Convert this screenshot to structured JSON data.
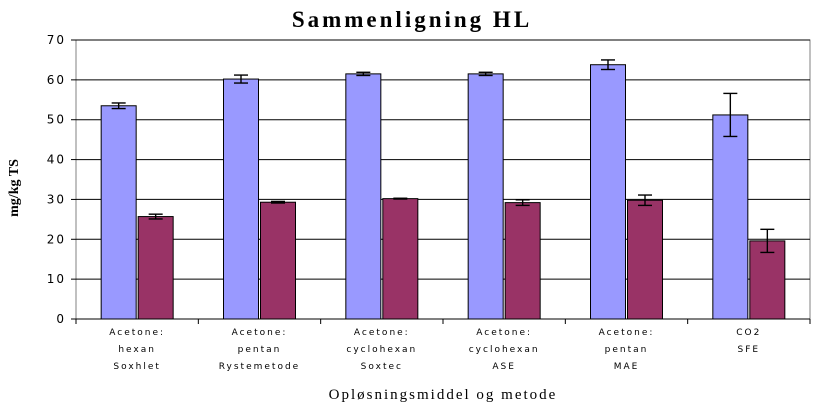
{
  "chart_data": {
    "type": "bar",
    "title": "Sammenligning HL",
    "xlabel": "Opløsningsmiddel og metode",
    "ylabel": "mg/kg TS",
    "ylim": [
      0,
      70
    ],
    "yticks": [
      0,
      10,
      20,
      30,
      40,
      50,
      60,
      70
    ],
    "grid": true,
    "legend": "none",
    "categories": [
      [
        "Acetone:",
        "hexan",
        "Soxhlet"
      ],
      [
        "Acetone:",
        "pentan",
        "Rystemetode"
      ],
      [
        "Acetone:",
        "cyclohexan",
        "Soxtec"
      ],
      [
        "Acetone:",
        "cyclohexan",
        "ASE"
      ],
      [
        "Acetone:",
        "pentan",
        "MAE"
      ],
      [
        "CO2",
        "SFE"
      ]
    ],
    "series": [
      {
        "color": "#9999ff",
        "values": [
          53.5,
          60.2,
          61.5,
          61.5,
          63.8,
          51.2
        ],
        "errors": [
          0.7,
          1.0,
          0.4,
          0.4,
          1.2,
          5.4
        ]
      },
      {
        "color": "#993366",
        "values": [
          25.7,
          29.3,
          30.2,
          29.2,
          29.8,
          19.6
        ],
        "errors": [
          0.6,
          0.2,
          0.1,
          0.7,
          1.3,
          2.9
        ]
      }
    ],
    "colors": {
      "plot_border": "#808080",
      "grid": "#000000",
      "text": "#000000"
    }
  }
}
